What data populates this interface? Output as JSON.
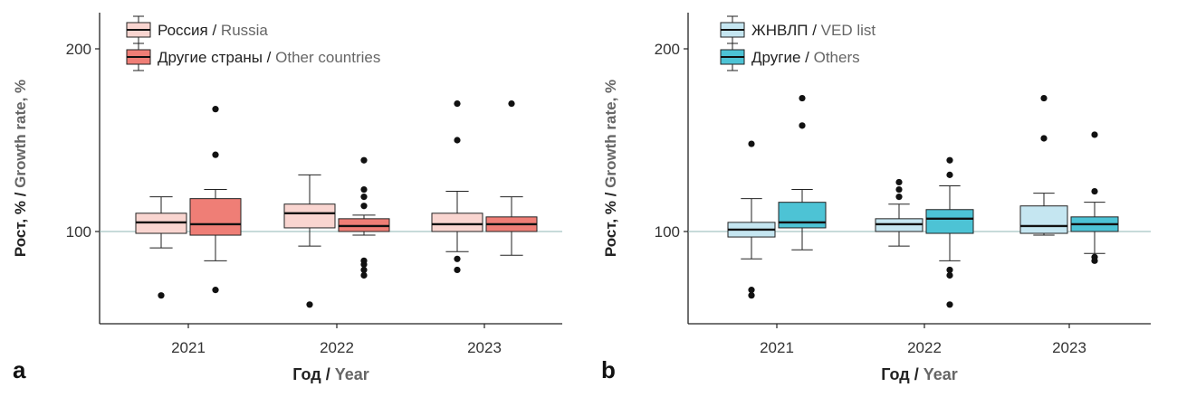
{
  "figure": {
    "panels": [
      {
        "letter": "a",
        "ylabel_ru": "Рост, % / ",
        "ylabel_en": "Growth rate, %",
        "xlabel_ru": "Год / ",
        "xlabel_en": "Year"
      },
      {
        "letter": "b",
        "ylabel_ru": "Рост, % / ",
        "ylabel_en": "Growth rate, %",
        "xlabel_ru": "Год / ",
        "xlabel_en": "Year"
      }
    ]
  },
  "chart_data": [
    {
      "type": "box",
      "categories": [
        "2021",
        "2022",
        "2023"
      ],
      "ylim": [
        50,
        220
      ],
      "y_ticks": [
        100,
        200
      ],
      "reference_line": 100,
      "grid": false,
      "legend_position": "top-left",
      "series": [
        {
          "name_ru": "Россия / ",
          "name_en": "Russia",
          "fill": "#f9d5d0",
          "boxes": [
            {
              "whisker_low": 91,
              "q1": 99,
              "median": 105,
              "q3": 110,
              "whisker_high": 119,
              "outliers": [
                65
              ]
            },
            {
              "whisker_low": 92,
              "q1": 102,
              "median": 110,
              "q3": 115,
              "whisker_high": 131,
              "outliers": [
                60
              ]
            },
            {
              "whisker_low": 89,
              "q1": 100,
              "median": 104,
              "q3": 110,
              "whisker_high": 122,
              "outliers": [
                85,
                79,
                150,
                170
              ]
            }
          ]
        },
        {
          "name_ru": "Другие страны / ",
          "name_en": "Other countries",
          "fill": "#ef7e76",
          "boxes": [
            {
              "whisker_low": 84,
              "q1": 98,
              "median": 104,
              "q3": 118,
              "whisker_high": 123,
              "outliers": [
                68,
                142,
                167
              ]
            },
            {
              "whisker_low": 98,
              "q1": 100,
              "median": 103,
              "q3": 107,
              "whisker_high": 109,
              "outliers": [
                76,
                79,
                82,
                84,
                114,
                119,
                123,
                139
              ]
            },
            {
              "whisker_low": 87,
              "q1": 100,
              "median": 104,
              "q3": 108,
              "whisker_high": 119,
              "outliers": [
                170
              ]
            }
          ]
        }
      ]
    },
    {
      "type": "box",
      "categories": [
        "2021",
        "2022",
        "2023"
      ],
      "ylim": [
        50,
        220
      ],
      "y_ticks": [
        100,
        200
      ],
      "reference_line": 100,
      "grid": false,
      "legend_position": "top-left",
      "series": [
        {
          "name_ru": "ЖНВЛП / ",
          "name_en": "VED list",
          "fill": "#c5e6f1",
          "boxes": [
            {
              "whisker_low": 85,
              "q1": 97,
              "median": 101,
              "q3": 105,
              "whisker_high": 118,
              "outliers": [
                65,
                68,
                148
              ]
            },
            {
              "whisker_low": 92,
              "q1": 100,
              "median": 104,
              "q3": 107,
              "whisker_high": 115,
              "outliers": [
                119,
                123,
                127
              ]
            },
            {
              "whisker_low": 98,
              "q1": 99,
              "median": 103,
              "q3": 114,
              "whisker_high": 121,
              "outliers": [
                151,
                173
              ]
            }
          ]
        },
        {
          "name_ru": "Другие / ",
          "name_en": "Others",
          "fill": "#4dc3d5",
          "boxes": [
            {
              "whisker_low": 90,
              "q1": 102,
              "median": 105,
              "q3": 116,
              "whisker_high": 123,
              "outliers": [
                158,
                173
              ]
            },
            {
              "whisker_low": 84,
              "q1": 99,
              "median": 107,
              "q3": 112,
              "whisker_high": 125,
              "outliers": [
                60,
                76,
                79,
                131,
                139
              ]
            },
            {
              "whisker_low": 88,
              "q1": 100,
              "median": 104,
              "q3": 108,
              "whisker_high": 116,
              "outliers": [
                84,
                86,
                122,
                153
              ]
            }
          ]
        }
      ]
    }
  ]
}
